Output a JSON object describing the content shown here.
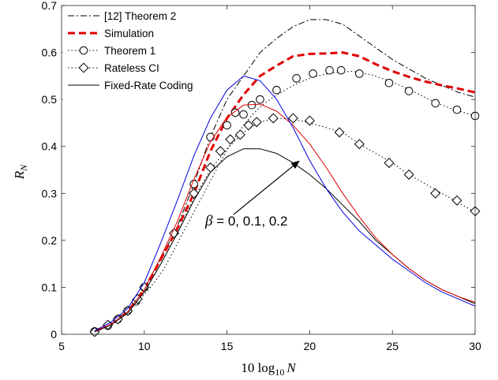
{
  "chart_data": {
    "type": "line",
    "xlabel_main": "10 log",
    "xlabel_sub": "10",
    "xlabel_var": "N",
    "ylabel_main": "R",
    "ylabel_sub": "N",
    "xlim": [
      5,
      30
    ],
    "ylim": [
      0,
      0.7
    ],
    "xticks": [
      5,
      10,
      15,
      20,
      25,
      30
    ],
    "xtick_labels": [
      "5",
      "10",
      "15",
      "20",
      "25",
      "30"
    ],
    "yticks": [
      0,
      0.1,
      0.2,
      0.3,
      0.4,
      0.5,
      0.6,
      0.7
    ],
    "ytick_labels": [
      "0",
      "0.1",
      "0.2",
      "0.3",
      "0.4",
      "0.5",
      "0.6",
      "0.7"
    ],
    "grid": false,
    "legend_position": "top-left",
    "annotation": {
      "beta": "β",
      "text": " = 0, 0.1, 0.2",
      "arrow_from": [
        15.4,
        0.255
      ],
      "arrow_to": [
        19.4,
        0.37
      ]
    },
    "series": [
      {
        "name": "[12] Theorem 2",
        "color": "#000000",
        "dash": "8 3 2 3",
        "width": 1,
        "marker": "none",
        "x": [
          7,
          8,
          9,
          10,
          11,
          12,
          13,
          14,
          15,
          16,
          17,
          18,
          19,
          20,
          21,
          22,
          23,
          24,
          25,
          26,
          27,
          28,
          29,
          30
        ],
        "y": [
          0.008,
          0.025,
          0.05,
          0.1,
          0.16,
          0.23,
          0.32,
          0.42,
          0.5,
          0.55,
          0.6,
          0.63,
          0.655,
          0.67,
          0.67,
          0.66,
          0.635,
          0.61,
          0.585,
          0.565,
          0.545,
          0.53,
          0.515,
          0.505
        ]
      },
      {
        "name": "Simulation",
        "color": "#e00000",
        "dash": "9 5",
        "width": 3,
        "marker": "none",
        "x": [
          7,
          8,
          9,
          10,
          11,
          12,
          13,
          14,
          15,
          16,
          17,
          18,
          19,
          20,
          21,
          22,
          23,
          24,
          25,
          26,
          27,
          28,
          29,
          30
        ],
        "y": [
          0.006,
          0.022,
          0.048,
          0.095,
          0.16,
          0.225,
          0.3,
          0.39,
          0.46,
          0.51,
          0.55,
          0.572,
          0.592,
          0.597,
          0.598,
          0.6,
          0.592,
          0.575,
          0.56,
          0.548,
          0.538,
          0.53,
          0.523,
          0.515
        ]
      },
      {
        "name": "Theorem 1",
        "color": "#000000",
        "dash": "1.5 3",
        "width": 1,
        "marker": "circle",
        "x": [
          7,
          7.6,
          8.2,
          8.8,
          9.4,
          10,
          10.6,
          11.2,
          11.8,
          12.4,
          13,
          13.6,
          14.2,
          14.8,
          15.4,
          16,
          16.6,
          17.2,
          17.8,
          19,
          20.2,
          21.4,
          22.6,
          23.8,
          25,
          26.2,
          27.4,
          28.6,
          29.8,
          30
        ],
        "y": [
          0.006,
          0.015,
          0.028,
          0.044,
          0.062,
          0.085,
          0.11,
          0.14,
          0.18,
          0.22,
          0.26,
          0.3,
          0.34,
          0.38,
          0.415,
          0.445,
          0.47,
          0.49,
          0.505,
          0.53,
          0.548,
          0.557,
          0.56,
          0.552,
          0.537,
          0.518,
          0.497,
          0.48,
          0.467,
          0.465
        ],
        "marker_x": [
          7,
          7.8,
          8.4,
          9,
          9.5,
          10,
          13,
          14,
          15,
          15.5,
          16,
          16.5,
          17,
          18,
          19.2,
          20.2,
          21.2,
          21.9,
          23,
          24.8,
          26,
          27.6,
          28.9,
          30
        ],
        "marker_y": [
          0.006,
          0.018,
          0.032,
          0.05,
          0.07,
          0.1,
          0.32,
          0.42,
          0.445,
          0.472,
          0.468,
          0.488,
          0.5,
          0.52,
          0.545,
          0.555,
          0.562,
          0.562,
          0.555,
          0.535,
          0.518,
          0.492,
          0.478,
          0.465
        ]
      },
      {
        "name": "Rateless CI",
        "color": "#000000",
        "dash": "1.5 3",
        "width": 1,
        "marker": "diamond",
        "x": [
          7,
          8,
          9,
          10,
          11,
          12,
          13,
          14,
          15,
          16,
          17,
          18,
          19,
          20,
          21,
          22,
          23,
          24,
          25,
          26,
          27,
          28,
          29,
          30
        ],
        "y": [
          0.005,
          0.02,
          0.045,
          0.09,
          0.15,
          0.215,
          0.29,
          0.35,
          0.395,
          0.43,
          0.452,
          0.46,
          0.458,
          0.45,
          0.44,
          0.43,
          0.405,
          0.385,
          0.365,
          0.34,
          0.32,
          0.3,
          0.28,
          0.26
        ],
        "marker_x": [
          7,
          7.8,
          8.4,
          9,
          9.6,
          10,
          11.8,
          13,
          14,
          14.6,
          15.2,
          15.8,
          16.3,
          16.8,
          17.8,
          19,
          20,
          21.8,
          23,
          24.8,
          26,
          27.6,
          28.9,
          30
        ],
        "marker_y": [
          0.005,
          0.02,
          0.032,
          0.05,
          0.075,
          0.1,
          0.215,
          0.3,
          0.355,
          0.39,
          0.415,
          0.425,
          0.445,
          0.452,
          0.46,
          0.46,
          0.455,
          0.43,
          0.405,
          0.365,
          0.34,
          0.3,
          0.285,
          0.262
        ]
      },
      {
        "name": "Fixed-Rate Coding",
        "color": "#000000",
        "dash": "",
        "width": 1,
        "marker": "none",
        "x": [
          7,
          8,
          9,
          10,
          11,
          12,
          13,
          14,
          15,
          16,
          17,
          18,
          19,
          20,
          21,
          22,
          23,
          24,
          25,
          26,
          27,
          28,
          29,
          30
        ],
        "y": [
          0.005,
          0.02,
          0.045,
          0.09,
          0.15,
          0.215,
          0.285,
          0.345,
          0.378,
          0.395,
          0.395,
          0.385,
          0.365,
          0.34,
          0.31,
          0.275,
          0.24,
          0.2,
          0.17,
          0.14,
          0.115,
          0.095,
          0.08,
          0.065
        ]
      },
      {
        "name": "",
        "color": "#e00000",
        "dash": "",
        "width": 1,
        "marker": "none",
        "x": [
          7,
          8,
          9,
          10,
          11,
          12,
          13,
          14,
          15,
          16,
          17,
          18,
          19,
          20,
          21,
          22,
          23,
          24,
          25,
          26,
          27,
          28,
          29,
          30
        ],
        "y": [
          0.006,
          0.022,
          0.048,
          0.095,
          0.165,
          0.24,
          0.33,
          0.41,
          0.462,
          0.488,
          0.49,
          0.475,
          0.445,
          0.405,
          0.355,
          0.3,
          0.25,
          0.205,
          0.17,
          0.14,
          0.115,
          0.095,
          0.08,
          0.068
        ]
      },
      {
        "name": "",
        "color": "#0000e0",
        "dash": "",
        "width": 1,
        "marker": "none",
        "x": [
          7,
          8,
          9,
          10,
          11,
          12,
          13,
          14,
          15,
          16,
          17,
          18,
          19,
          20,
          21,
          22,
          23,
          24,
          25,
          26,
          27,
          28,
          29,
          30
        ],
        "y": [
          0.007,
          0.026,
          0.055,
          0.11,
          0.195,
          0.285,
          0.38,
          0.46,
          0.52,
          0.55,
          0.54,
          0.5,
          0.44,
          0.37,
          0.31,
          0.26,
          0.22,
          0.19,
          0.16,
          0.135,
          0.11,
          0.09,
          0.075,
          0.06
        ]
      }
    ]
  }
}
